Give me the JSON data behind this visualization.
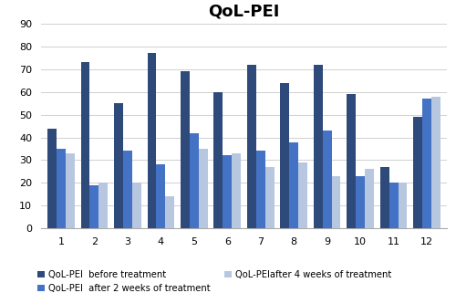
{
  "title": "QoL-PEI",
  "categories": [
    1,
    2,
    3,
    4,
    5,
    6,
    7,
    8,
    9,
    10,
    11,
    12
  ],
  "series": {
    "before": [
      44,
      73,
      55,
      77,
      69,
      60,
      72,
      64,
      72,
      59,
      27,
      49
    ],
    "after_2weeks": [
      35,
      19,
      34,
      28,
      42,
      32,
      34,
      38,
      43,
      23,
      20,
      57
    ],
    "after_4weeks": [
      33,
      20,
      20,
      14,
      35,
      33,
      27,
      29,
      23,
      26,
      20,
      58
    ]
  },
  "colors": {
    "before": "#2E4A7A",
    "after_2weeks": "#4472C4",
    "after_4weeks": "#B8C7E0"
  },
  "legend_labels": {
    "before": "QoL-PEI  before treatment",
    "after_2weeks": "QoL-PEI  after 2 weeks of treatment",
    "after_4weeks": "QoL-PEIafter 4 weeks of treatment"
  },
  "ylim": [
    0,
    90
  ],
  "yticks": [
    0,
    10,
    20,
    30,
    40,
    50,
    60,
    70,
    80,
    90
  ],
  "bar_width": 0.27,
  "title_fontsize": 13,
  "tick_fontsize": 8,
  "legend_fontsize": 7.2
}
